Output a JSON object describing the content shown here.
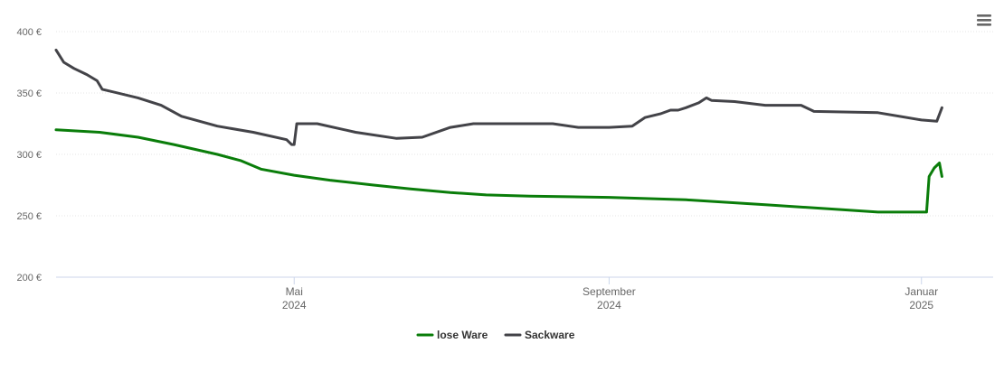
{
  "chart_data": {
    "type": "line",
    "title": "",
    "xlabel": "",
    "ylabel": "",
    "ylim": [
      200,
      400
    ],
    "y_ticks": [
      {
        "value": 400,
        "label": "400 €"
      },
      {
        "value": 350,
        "label": "350 €"
      },
      {
        "value": 300,
        "label": "300 €"
      },
      {
        "value": 250,
        "label": "250 €"
      },
      {
        "value": 200,
        "label": "200 €"
      }
    ],
    "x_range": [
      "2024-01-29",
      "2025-01-29"
    ],
    "x_ticks": [
      {
        "date": "2024-05-01",
        "line1": "Mai",
        "line2": "2024"
      },
      {
        "date": "2024-09-01",
        "line1": "September",
        "line2": "2024"
      },
      {
        "date": "2025-01-01",
        "line1": "Januar",
        "line2": "2025"
      }
    ],
    "grid": true,
    "legend_position": "bottom-center",
    "series": [
      {
        "name": "lose Ware",
        "color": "#0a7d0a",
        "points": [
          [
            "2024-01-29",
            320
          ],
          [
            "2024-02-15",
            318
          ],
          [
            "2024-03-01",
            314
          ],
          [
            "2024-03-15",
            308
          ],
          [
            "2024-04-01",
            300
          ],
          [
            "2024-04-10",
            295
          ],
          [
            "2024-04-18",
            288
          ],
          [
            "2024-05-01",
            283
          ],
          [
            "2024-05-15",
            279
          ],
          [
            "2024-06-01",
            275
          ],
          [
            "2024-06-15",
            272
          ],
          [
            "2024-07-01",
            269
          ],
          [
            "2024-07-15",
            267
          ],
          [
            "2024-08-01",
            266
          ],
          [
            "2024-09-01",
            265
          ],
          [
            "2024-10-01",
            263
          ],
          [
            "2024-11-01",
            259
          ],
          [
            "2024-12-01",
            255
          ],
          [
            "2024-12-15",
            253
          ],
          [
            "2025-01-03",
            253
          ],
          [
            "2025-01-04",
            282
          ],
          [
            "2025-01-06",
            289
          ],
          [
            "2025-01-08",
            293
          ],
          [
            "2025-01-09",
            282
          ]
        ]
      },
      {
        "name": "Sackware",
        "color": "#434348",
        "points": [
          [
            "2024-01-29",
            385
          ],
          [
            "2024-02-01",
            375
          ],
          [
            "2024-02-05",
            370
          ],
          [
            "2024-02-10",
            365
          ],
          [
            "2024-02-14",
            360
          ],
          [
            "2024-02-16",
            353
          ],
          [
            "2024-03-01",
            346
          ],
          [
            "2024-03-10",
            340
          ],
          [
            "2024-03-18",
            331
          ],
          [
            "2024-04-01",
            323
          ],
          [
            "2024-04-15",
            318
          ],
          [
            "2024-04-28",
            312
          ],
          [
            "2024-04-30",
            308
          ],
          [
            "2024-05-01",
            308
          ],
          [
            "2024-05-02",
            325
          ],
          [
            "2024-05-10",
            325
          ],
          [
            "2024-05-25",
            318
          ],
          [
            "2024-06-10",
            313
          ],
          [
            "2024-06-20",
            314
          ],
          [
            "2024-07-01",
            322
          ],
          [
            "2024-07-10",
            325
          ],
          [
            "2024-08-01",
            325
          ],
          [
            "2024-08-10",
            325
          ],
          [
            "2024-08-20",
            322
          ],
          [
            "2024-09-01",
            322
          ],
          [
            "2024-09-10",
            323
          ],
          [
            "2024-09-15",
            330
          ],
          [
            "2024-09-21",
            333
          ],
          [
            "2024-09-25",
            336
          ],
          [
            "2024-09-28",
            336
          ],
          [
            "2024-10-01",
            338
          ],
          [
            "2024-10-06",
            342
          ],
          [
            "2024-10-09",
            346
          ],
          [
            "2024-10-11",
            344
          ],
          [
            "2024-10-20",
            343
          ],
          [
            "2024-11-01",
            340
          ],
          [
            "2024-11-15",
            340
          ],
          [
            "2024-11-20",
            335
          ],
          [
            "2024-12-15",
            334
          ],
          [
            "2025-01-01",
            328
          ],
          [
            "2025-01-07",
            327
          ],
          [
            "2025-01-09",
            338
          ]
        ]
      }
    ]
  }
}
